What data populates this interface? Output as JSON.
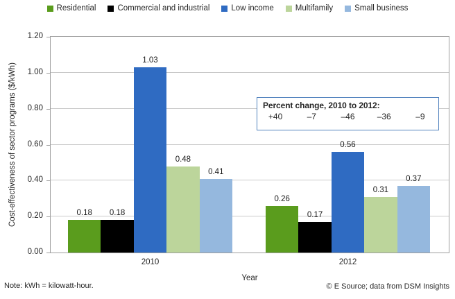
{
  "chart_data": {
    "type": "bar",
    "categories": [
      "2010",
      "2012"
    ],
    "series": [
      {
        "name": "Residential",
        "color": "#5a9c1d",
        "values": [
          0.18,
          0.26
        ]
      },
      {
        "name": "Commercial and industrial",
        "color": "#000000",
        "values": [
          0.18,
          0.17
        ]
      },
      {
        "name": "Low income",
        "color": "#2f6bc2",
        "values": [
          1.03,
          0.56
        ]
      },
      {
        "name": "Multifamily",
        "color": "#bcd59b",
        "values": [
          0.48,
          0.31
        ]
      },
      {
        "name": "Small business",
        "color": "#95b8de",
        "values": [
          0.41,
          0.37
        ]
      }
    ],
    "xlabel": "Year",
    "ylabel": "Cost-effectiveness of sector programs ($/kWh)",
    "ylim": [
      0,
      1.2
    ],
    "ytick_labels": [
      "0.00",
      "0.20",
      "0.40",
      "0.60",
      "0.80",
      "1.00",
      "1.20"
    ],
    "grid": true,
    "legend_position": "top",
    "data_labels": true
  },
  "annotation_box": {
    "title": "Percent change, 2010 to 2012:",
    "values": [
      "+40",
      "–7",
      "–46",
      "–36",
      "–9"
    ]
  },
  "footer": {
    "note": "Note: kWh = kilowatt-hour.",
    "credit": "© E Source; data from DSM Insights"
  },
  "colors": {
    "gridline": "#c9c9c9",
    "plot_border": "#9d9d9d",
    "annotation_border": "#4f81bd"
  }
}
